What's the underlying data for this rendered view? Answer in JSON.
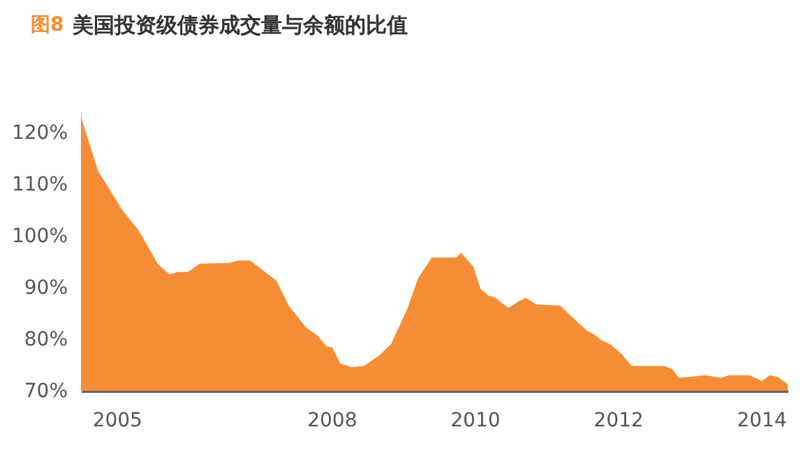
{
  "chart_data": {
    "type": "area",
    "title": "美国投资级债券成交量与余额的比值",
    "annotations": [
      "图8"
    ],
    "x": [
      2004.5,
      2004.74,
      2005.08,
      2005.31,
      2005.58,
      2005.74,
      2005.85,
      2005.99,
      2006.16,
      2006.56,
      2006.7,
      2006.86,
      2007.23,
      2007.4,
      2007.64,
      2007.81,
      2007.93,
      2008.01,
      2008.12,
      2008.28,
      2008.45,
      2008.67,
      2008.83,
      2009.05,
      2009.21,
      2009.4,
      2009.74,
      2009.81,
      2009.98,
      2010.08,
      2010.19,
      2010.28,
      2010.47,
      2010.6,
      2010.71,
      2010.86,
      2011.19,
      2011.38,
      2011.55,
      2011.69,
      2011.77,
      2011.9,
      2012.04,
      2012.19,
      2012.65,
      2012.76,
      2012.85,
      2013.23,
      2013.44,
      2013.55,
      2013.84,
      2014.01,
      2014.12,
      2014.23,
      2014.37
    ],
    "series": [
      {
        "color": "#f58d36",
        "values": [
          123,
          112.5,
          104.9,
          100.9,
          94.4,
          92.5,
          93,
          93,
          94.6,
          94.7,
          95.2,
          95.2,
          91.3,
          86.5,
          82.3,
          80.6,
          78.6,
          78.4,
          75.3,
          74.6,
          74.8,
          76.9,
          79,
          85.6,
          91.8,
          95.8,
          95.8,
          96.7,
          94,
          89.7,
          88.4,
          88.1,
          86,
          87.2,
          88,
          86.7,
          86.5,
          84,
          81.8,
          80.7,
          79.8,
          78.9,
          77.3,
          74.8,
          74.8,
          74.2,
          72.5,
          73,
          72.5,
          73,
          73,
          71.9,
          73,
          72.7,
          71.3
        ]
      }
    ],
    "xlim": [
      2004.5,
      2014.37
    ],
    "xticks": [
      2005,
      2008,
      2010,
      2012,
      2014
    ],
    "ylim": [
      70,
      124
    ],
    "yticks": [
      {
        "value": 70,
        "label": "70%"
      },
      {
        "value": 80,
        "label": "80%"
      },
      {
        "value": 90,
        "label": "90%"
      },
      {
        "value": 100,
        "label": "100%"
      },
      {
        "value": 110,
        "label": "110%"
      },
      {
        "value": 120,
        "label": "120%"
      }
    ],
    "grid": false
  }
}
